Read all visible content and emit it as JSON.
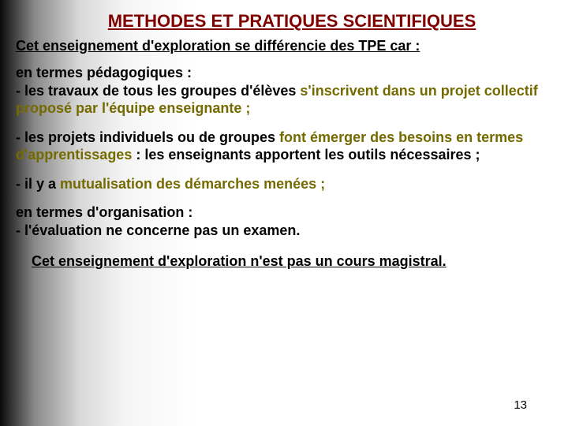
{
  "colors": {
    "title": "#800000",
    "accent": "#746a00",
    "text": "#000000",
    "bg_gradient_stops": [
      "#0a0a0a",
      "#888888",
      "#d8d8d8",
      "#f5f5f5",
      "#ffffff"
    ]
  },
  "typography": {
    "family": "Arial",
    "title_size_pt": 17,
    "body_size_pt": 14,
    "bold": true
  },
  "title": "METHODES ET PRATIQUES SCIENTIFIQUES",
  "subtitle": "Cet enseignement d'exploration se différencie  des TPE car :",
  "p1": {
    "lead": "en termes pédagogiques :",
    "line": "- les travaux de tous les groupes d'élèves ",
    "rest": "s'inscrivent dans un projet collectif proposé par l'équipe enseignante ;"
  },
  "p2": {
    "a": "- les projets individuels ou de groupes ",
    "b": "font émerger des besoins en termes d'apprentissages",
    "c": " : les enseignants apportent les outils nécessaires ;"
  },
  "p3": {
    "a": "-  il y a ",
    "b": "mutualisation des démarches menées ;"
  },
  "p4": {
    "lead": "en termes d'organisation :",
    "line": "- l'évaluation ne concerne pas un examen."
  },
  "conclusion": "Cet enseignement d'exploration n'est pas un cours magistral.",
  "page_number": "13"
}
